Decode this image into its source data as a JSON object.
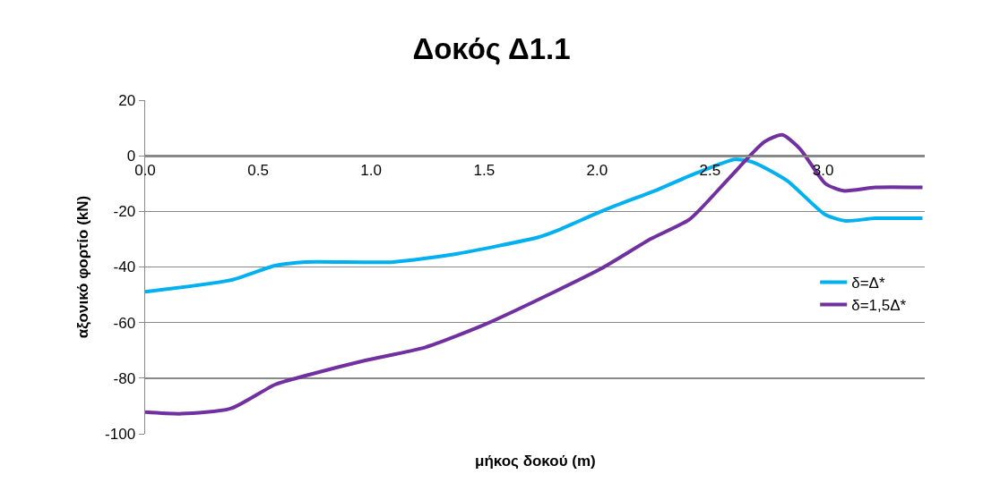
{
  "chart_data": {
    "type": "line",
    "title": "Δοκός Δ1.1",
    "xlabel": "μήκος δοκού (m)",
    "ylabel": "αξονικό φορτίο (kN)",
    "xlim": [
      0,
      3.45
    ],
    "xticks": [
      {
        "value": 0,
        "label": "0.0"
      },
      0.5,
      {
        "value": 1,
        "label": "1.0"
      },
      1.5,
      {
        "value": 2,
        "label": "2.0"
      },
      2.5,
      {
        "value": 3,
        "label": "3.0"
      }
    ],
    "ylim": [
      -100,
      20
    ],
    "yticks": [
      -100,
      -80,
      -60,
      -40,
      -20,
      0,
      20
    ],
    "grid": "y",
    "legend": "right",
    "marker": "none",
    "line_style": "solid",
    "series": [
      {
        "name": "δ=Δ*",
        "color": "#00b0f0",
        "x": [
          0,
          0.38,
          0.575,
          0.71,
          1.1,
          1.37,
          1.74,
          1.82,
          2.03,
          2.27,
          2.44,
          2.61,
          2.69,
          2.84,
          3.01,
          3.1,
          3.23,
          3.44
        ],
        "values": [
          -48.9,
          -44.7,
          -39.5,
          -38.2,
          -38.2,
          -35.4,
          -29.3,
          -27,
          -19.6,
          -12.1,
          -6.2,
          -1.3,
          -2.3,
          -8.9,
          -21.2,
          -23.4,
          -22.5,
          -22.5
        ]
      },
      {
        "name": "δ=1,5Δ*",
        "color": "#7030a0",
        "x": [
          0,
          0.16,
          0.38,
          0.575,
          0.71,
          0.97,
          1.24,
          1.5,
          1.82,
          2.02,
          2.24,
          2.41,
          2.58,
          2.74,
          2.82,
          2.9,
          3.01,
          3.09,
          3.23,
          3.44
        ],
        "values": [
          -92.2,
          -92.8,
          -90.9,
          -82.3,
          -79.1,
          -73.7,
          -68.9,
          -60.8,
          -48.6,
          -40.5,
          -29.8,
          -22.8,
          -8.4,
          5,
          7.5,
          2.3,
          -10,
          -12.6,
          -11.4,
          -11.4
        ]
      }
    ]
  }
}
